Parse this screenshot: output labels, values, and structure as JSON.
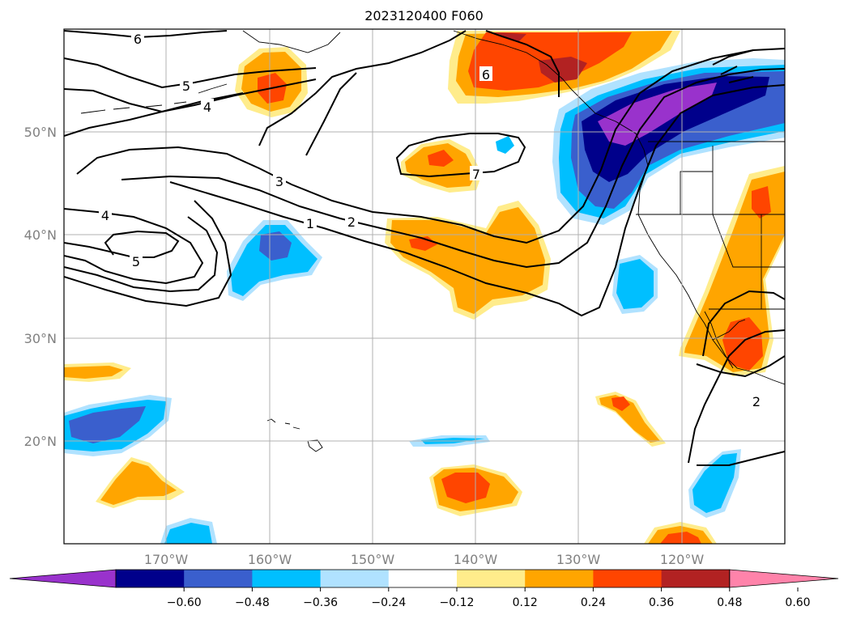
{
  "title": "2023120400 F060",
  "map": {
    "lon_labels": [
      "170°W",
      "160°W",
      "150°W",
      "140°W",
      "130°W",
      "120°W"
    ],
    "lat_labels": [
      "50°N",
      "40°N",
      "30°N",
      "20°N"
    ],
    "contour_labels": [
      "6",
      "5",
      "4",
      "3",
      "2",
      "1",
      "7",
      "6",
      "4",
      "5",
      "2"
    ],
    "grid": true
  },
  "colorbar": {
    "ticks": [
      "−0.60",
      "−0.48",
      "−0.36",
      "−0.24",
      "−0.12",
      "0.12",
      "0.24",
      "0.36",
      "0.48",
      "0.60"
    ],
    "colors": [
      "#9932cc",
      "#00008b",
      "#3a5fcd",
      "#00bfff",
      "#b0e2ff",
      "#ffffff",
      "#ffec8b",
      "#ffa500",
      "#ff4500",
      "#b22222",
      "#ff83aa"
    ],
    "extend": "both"
  }
}
